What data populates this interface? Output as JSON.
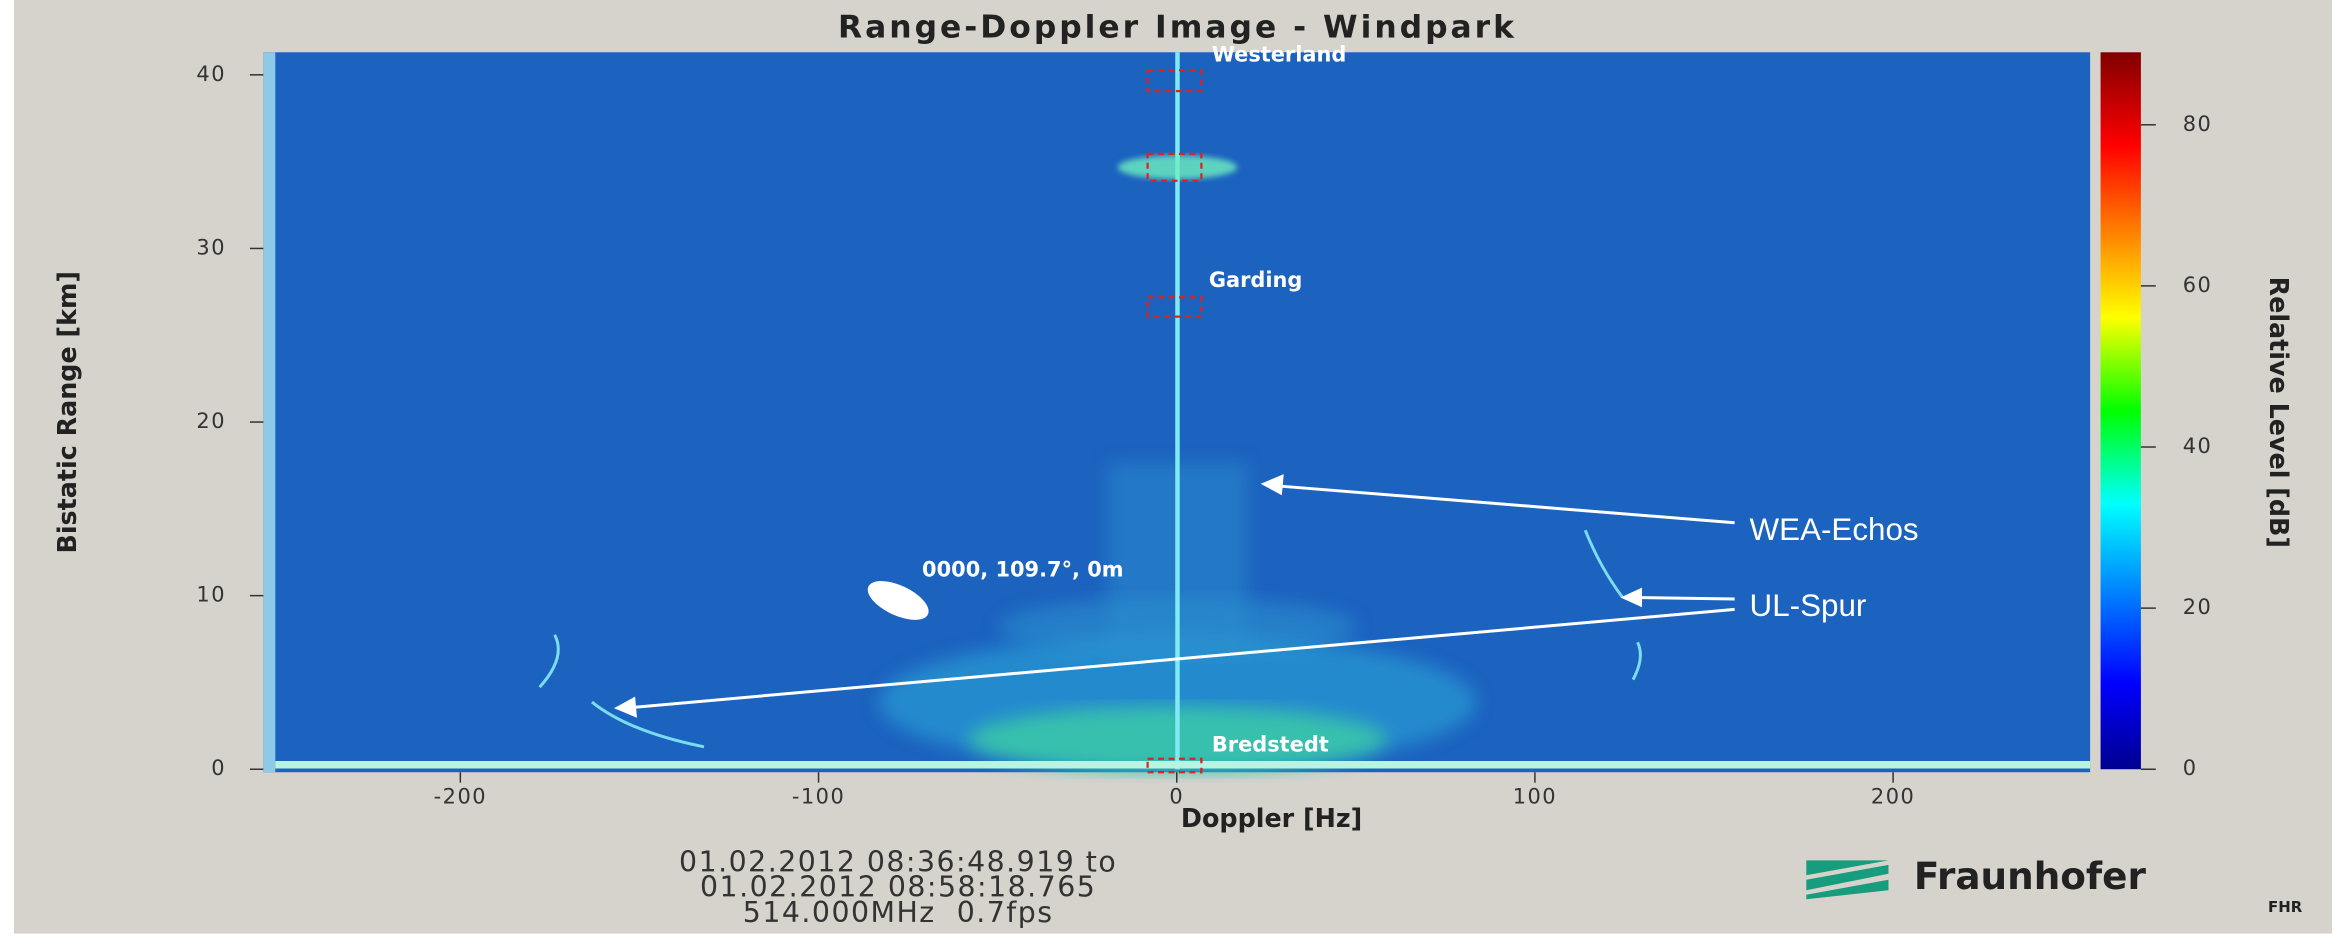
{
  "chart_data": {
    "type": "heatmap",
    "title": "Range-Doppler Image - Windpark",
    "x_label": "Doppler [Hz]",
    "y_label": "Bistatic Range [km]",
    "colorbar_label": "Relative Level [dB]",
    "xlim": [
      -255,
      255
    ],
    "xticks": [
      -200,
      -100,
      0,
      100,
      200
    ],
    "ylim": [
      0,
      41.3
    ],
    "yticks": [
      0,
      10,
      20,
      30,
      40
    ],
    "zlim": [
      0,
      89
    ],
    "zticks": [
      0,
      20,
      40,
      60,
      80
    ],
    "place_labels": [
      "Westerland",
      "Garding",
      "Bredstedt"
    ],
    "target_label": "0000, 109.7°, 0m",
    "annotations": [
      "WEA-Echos",
      "UL-Spur"
    ],
    "footer": [
      "01.02.2012 08:36:48.919 to",
      "01.02.2012 08:58:18.765",
      "514.000MHz  0.7fps"
    ],
    "logo": [
      "Fraunhofer",
      "FHR"
    ]
  }
}
